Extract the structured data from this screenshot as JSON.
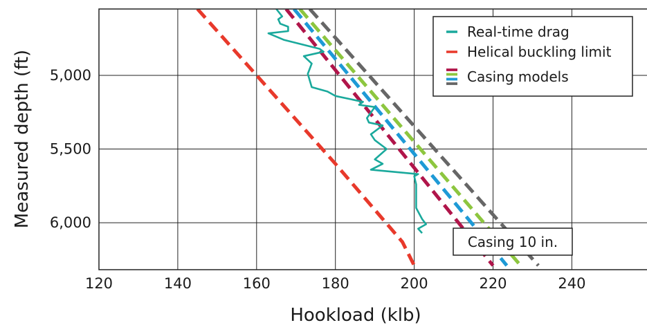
{
  "chart_data": {
    "type": "line",
    "xlabel": "Hookload (klb)",
    "ylabel": "Measured depth (ft)",
    "xlim": [
      120,
      260
    ],
    "ylim": [
      4550,
      6290
    ],
    "y_reversed": true,
    "x_ticks": [
      "120",
      "140",
      "160",
      "180",
      "200",
      "220",
      "240"
    ],
    "x_tick_values": [
      120,
      140,
      160,
      180,
      200,
      220,
      240
    ],
    "y_ticks": [
      "5,000",
      "5,500",
      "6,000"
    ],
    "y_tick_values": [
      5000,
      5500,
      6000
    ],
    "grid": true,
    "legend_position": "top-right",
    "legend": [
      {
        "label": "Real-time drag",
        "style": "solid",
        "colors": [
          "#1aa99c"
        ]
      },
      {
        "label": "Helical buckling limit",
        "style": "dashed",
        "colors": [
          "#e8392b"
        ]
      },
      {
        "label": "Casing models",
        "style": "dashed",
        "colors": [
          "#b0154a",
          "#8dc63f",
          "#1e9ad6",
          "#666666"
        ]
      }
    ],
    "series": [
      {
        "name": "Real-time drag",
        "color": "#1aa99c",
        "style": "solid",
        "points": [
          [
            165,
            4550
          ],
          [
            166.5,
            4600
          ],
          [
            165.5,
            4620
          ],
          [
            166,
            4650
          ],
          [
            168,
            4670
          ],
          [
            168,
            4700
          ],
          [
            163,
            4715
          ],
          [
            167,
            4760
          ],
          [
            176,
            4820
          ],
          [
            177,
            4840
          ],
          [
            172,
            4870
          ],
          [
            174,
            4920
          ],
          [
            173,
            4990
          ],
          [
            174,
            5080
          ],
          [
            178,
            5110
          ],
          [
            180,
            5140
          ],
          [
            187,
            5180
          ],
          [
            186,
            5200
          ],
          [
            190,
            5215
          ],
          [
            188,
            5290
          ],
          [
            188.5,
            5320
          ],
          [
            192,
            5340
          ],
          [
            189,
            5400
          ],
          [
            190,
            5440
          ],
          [
            193,
            5500
          ],
          [
            190,
            5570
          ],
          [
            192,
            5600
          ],
          [
            189,
            5640
          ],
          [
            201,
            5670
          ],
          [
            200,
            5685
          ],
          [
            200.5,
            5740
          ],
          [
            200.5,
            5870
          ],
          [
            200.5,
            5900
          ],
          [
            202,
            5975
          ],
          [
            203,
            6010
          ],
          [
            201,
            6040
          ],
          [
            202,
            6070
          ]
        ]
      },
      {
        "name": "Helical buckling limit",
        "color": "#e8392b",
        "style": "dashed",
        "points": [
          [
            145,
            4550
          ],
          [
            160,
            5000
          ],
          [
            180,
            5600
          ],
          [
            197,
            6130
          ],
          [
            200,
            6290
          ]
        ]
      },
      {
        "name": "Casing models",
        "color": "#b0154a",
        "style": "dashed",
        "points": [
          [
            167.5,
            4550
          ],
          [
            220,
            6290
          ]
        ]
      },
      {
        "name": "Casing models",
        "color": "#1e9ad6",
        "style": "dashed",
        "points": [
          [
            169.5,
            4550
          ],
          [
            223.5,
            6290
          ]
        ]
      },
      {
        "name": "Casing models",
        "color": "#8dc63f",
        "style": "dashed",
        "points": [
          [
            171,
            4550
          ],
          [
            227,
            6290
          ]
        ]
      },
      {
        "name": "Casing models",
        "color": "#666666",
        "style": "dashed",
        "points": [
          [
            173.5,
            4550
          ],
          [
            231.5,
            6290
          ]
        ]
      }
    ],
    "annotations": [
      {
        "text": "Casing 10 in."
      }
    ]
  }
}
